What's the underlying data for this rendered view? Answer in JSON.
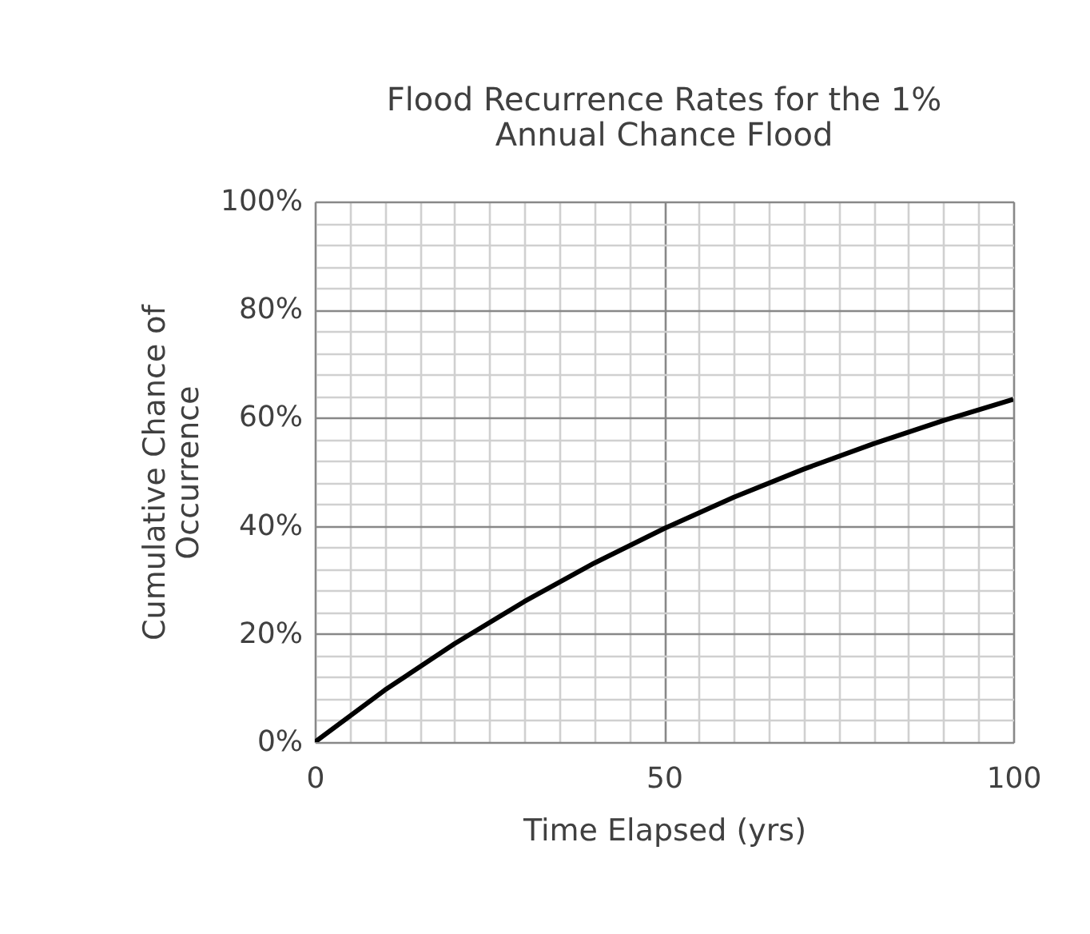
{
  "chart_data": {
    "type": "line",
    "title": "Flood Recurrence Rates for the 1% Annual Chance Flood",
    "xlabel": "Time Elapsed (yrs)",
    "ylabel": "Cumulative Chance of Occurrence",
    "x": [
      0,
      10,
      20,
      30,
      40,
      50,
      60,
      70,
      80,
      90,
      100
    ],
    "series": [
      {
        "color": "#000000",
        "values": [
          0,
          9.6,
          18.2,
          26.0,
          33.1,
          39.5,
          45.3,
          50.5,
          55.2,
          59.5,
          63.4
        ]
      }
    ],
    "xlim": [
      0,
      100
    ],
    "ylim": [
      0,
      100
    ],
    "xticks": [
      0,
      {
        "value": 5,
        "label": null
      },
      {
        "value": 10,
        "label": null
      },
      {
        "value": 15,
        "label": null
      },
      {
        "value": 20,
        "label": null
      },
      {
        "value": 25,
        "label": null
      },
      {
        "value": 30,
        "label": null
      },
      {
        "value": 35,
        "label": null
      },
      {
        "value": 40,
        "label": null
      },
      {
        "value": 45,
        "label": null
      },
      50,
      {
        "value": 55,
        "label": null
      },
      {
        "value": 60,
        "label": null
      },
      {
        "value": 65,
        "label": null
      },
      {
        "value": 70,
        "label": null
      },
      {
        "value": 75,
        "label": null
      },
      {
        "value": 80,
        "label": null
      },
      {
        "value": 85,
        "label": null
      },
      {
        "value": 90,
        "label": null
      },
      {
        "value": 95,
        "label": null
      },
      100
    ],
    "yticks": [
      {
        "value": 0,
        "label": "0%"
      },
      {
        "value": 4,
        "label": null
      },
      {
        "value": 8,
        "label": null
      },
      {
        "value": 12,
        "label": null
      },
      {
        "value": 16,
        "label": null
      },
      {
        "value": 20,
        "label": "20%"
      },
      {
        "value": 24,
        "label": null
      },
      {
        "value": 28,
        "label": null
      },
      {
        "value": 32,
        "label": null
      },
      {
        "value": 36,
        "label": null
      },
      {
        "value": 40,
        "label": "40%"
      },
      {
        "value": 44,
        "label": null
      },
      {
        "value": 48,
        "label": null
      },
      {
        "value": 52,
        "label": null
      },
      {
        "value": 56,
        "label": null
      },
      {
        "value": 60,
        "label": "60%"
      },
      {
        "value": 64,
        "label": null
      },
      {
        "value": 68,
        "label": null
      },
      {
        "value": 72,
        "label": null
      },
      {
        "value": 76,
        "label": null
      },
      {
        "value": 80,
        "label": "80%"
      },
      {
        "value": 84,
        "label": null
      },
      {
        "value": 88,
        "label": null
      },
      {
        "value": 92,
        "label": null
      },
      {
        "value": 96,
        "label": null
      },
      {
        "value": 100,
        "label": "100%"
      }
    ],
    "grid": true,
    "marker": "none",
    "line_style": "solid"
  }
}
